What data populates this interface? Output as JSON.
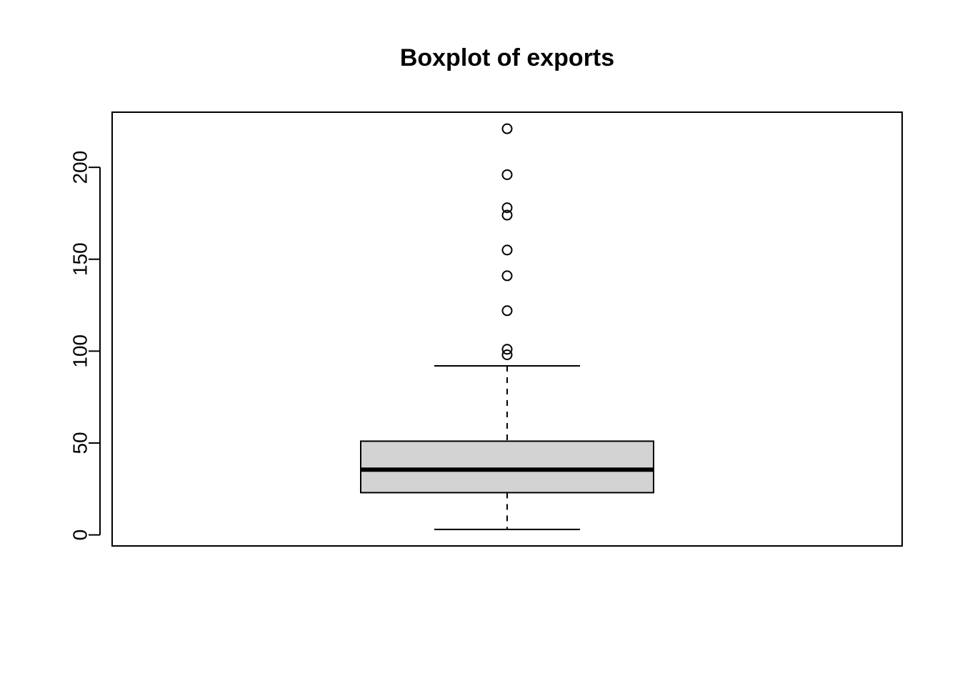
{
  "chart_data": {
    "type": "box",
    "title": "Boxplot of exports",
    "xlabel": "",
    "ylabel": "",
    "ylim": [
      -6,
      230
    ],
    "yticks": [
      0,
      50,
      100,
      150,
      200
    ],
    "grid": false,
    "box": {
      "whisker_low": 3,
      "q1": 23,
      "median": 35.5,
      "q3": 51,
      "whisker_high": 92
    },
    "outliers": [
      221,
      196,
      178,
      174,
      155,
      141,
      122,
      101,
      98
    ],
    "colors": {
      "box_fill": "#d3d3d3",
      "stroke": "#000000",
      "background": "#ffffff"
    }
  }
}
